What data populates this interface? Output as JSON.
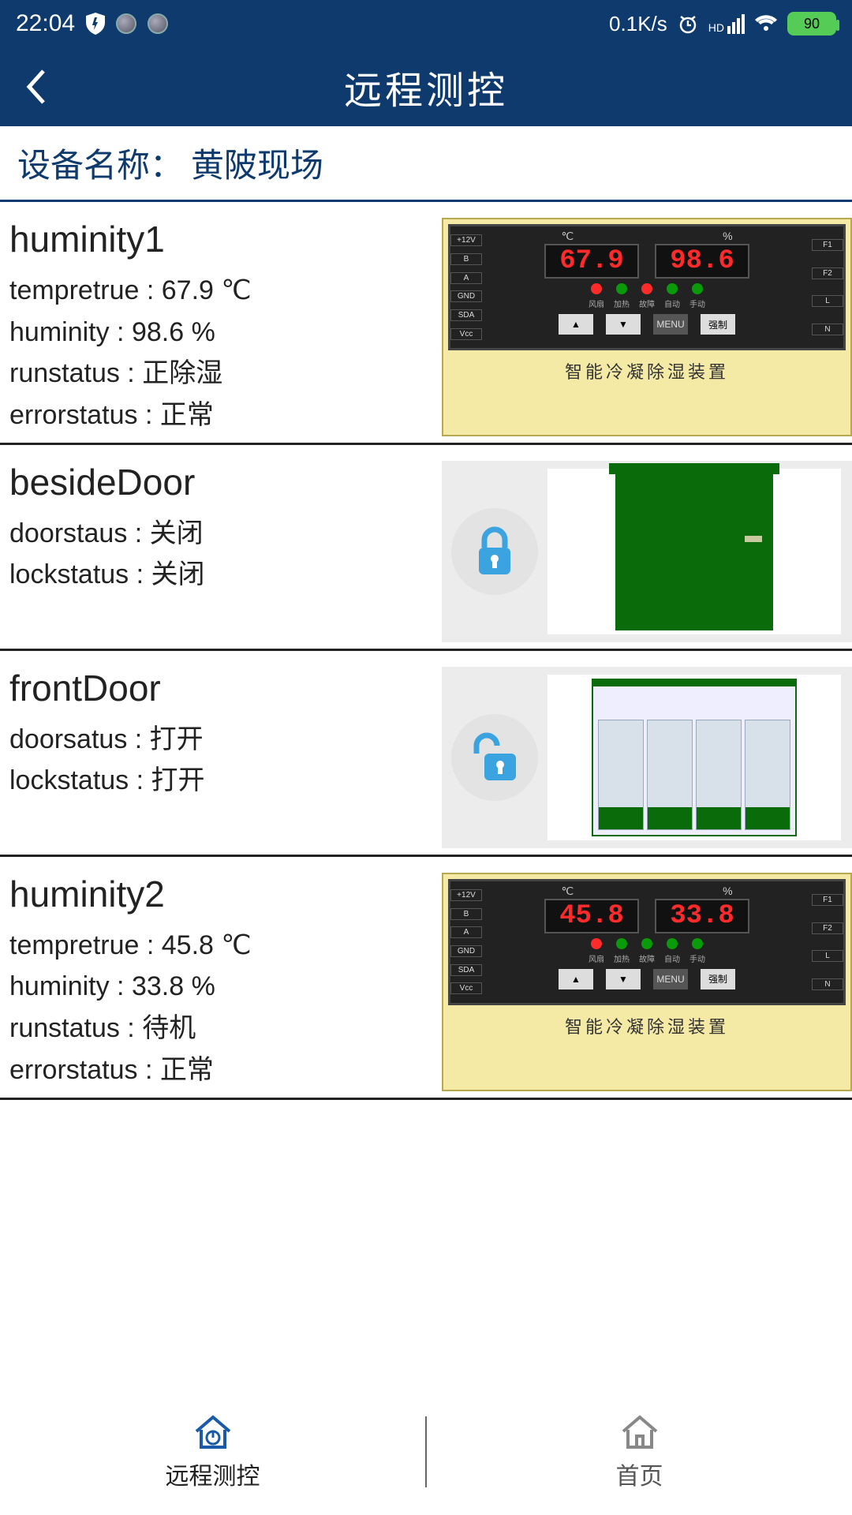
{
  "status_bar": {
    "time": "22:04",
    "net_speed": "0.1K/s",
    "battery_pct": "90",
    "text_color": "#ffffff",
    "bg_color": "#0e3a6e"
  },
  "header": {
    "title": "远程测控",
    "bg_color": "#0e3a6e",
    "text_color": "#ffffff"
  },
  "device_name_row": {
    "label": "设备名称：",
    "value": "黄陂现场",
    "text_color": "#0e3a6e",
    "underline_color": "#0e3a6e"
  },
  "panel_style": {
    "frame_bg": "#f5eaa5",
    "frame_border": "#b8a850",
    "screen_bg": "#222222",
    "digit_border": "#555555",
    "digit_color": "#ff2a2a",
    "caption_color": "#333333",
    "caption": "智能冷凝除湿装置",
    "btn_up": "▲",
    "btn_down": "▼",
    "btn_menu": "MENU",
    "btn_force": "强制",
    "unit_temp": "℃",
    "unit_hum": "%",
    "left_labels": [
      "+12V",
      "B",
      "A",
      "GND",
      "SDA",
      "Vcc"
    ],
    "right_labels": [
      "F1",
      "F2",
      "L",
      "N"
    ],
    "led_colors_1": [
      "#ff2a2a",
      "#0a9b0a",
      "#ff2a2a",
      "#0a9b0a",
      "#0a9b0a"
    ],
    "led_colors_2": [
      "#ff2a2a",
      "#0a9b0a",
      "#0a9b0a",
      "#0a9b0a",
      "#0a9b0a"
    ],
    "led_labels": [
      "风扇",
      "加热",
      "故障",
      "自动",
      "手动"
    ]
  },
  "lock_style": {
    "bg": "#ececec",
    "circle_bg": "#e3e3e3",
    "lock_color": "#3aa3e0",
    "cabinet_color": "#0a6b0a"
  },
  "items": [
    {
      "type": "dehumidifier",
      "title": "huminity1",
      "rows": [
        "tempretrue : 67.9 ℃",
        "huminity : 98.6 %",
        "runstatus : 正除湿",
        "errorstatus : 正常"
      ],
      "temp": "67.9",
      "hum": "98.6"
    },
    {
      "type": "door",
      "title": "besideDoor",
      "rows": [
        "doorstaus : 关闭",
        "lockstatus : 关闭"
      ],
      "locked": true
    },
    {
      "type": "door",
      "title": "frontDoor",
      "rows": [
        "doorsatus : 打开",
        "lockstatus : 打开"
      ],
      "locked": false
    },
    {
      "type": "dehumidifier",
      "title": "huminity2",
      "rows": [
        "tempretrue : 45.8 ℃",
        "huminity : 33.8 %",
        "runstatus : 待机",
        "errorstatus : 正常"
      ],
      "temp": "45.8",
      "hum": "33.8"
    }
  ],
  "bottom_nav": {
    "left": {
      "label": "远程测控",
      "icon": "home-power-icon",
      "color": "#1a5aa8"
    },
    "right": {
      "label": "首页",
      "icon": "home-icon",
      "color": "#888888"
    }
  }
}
